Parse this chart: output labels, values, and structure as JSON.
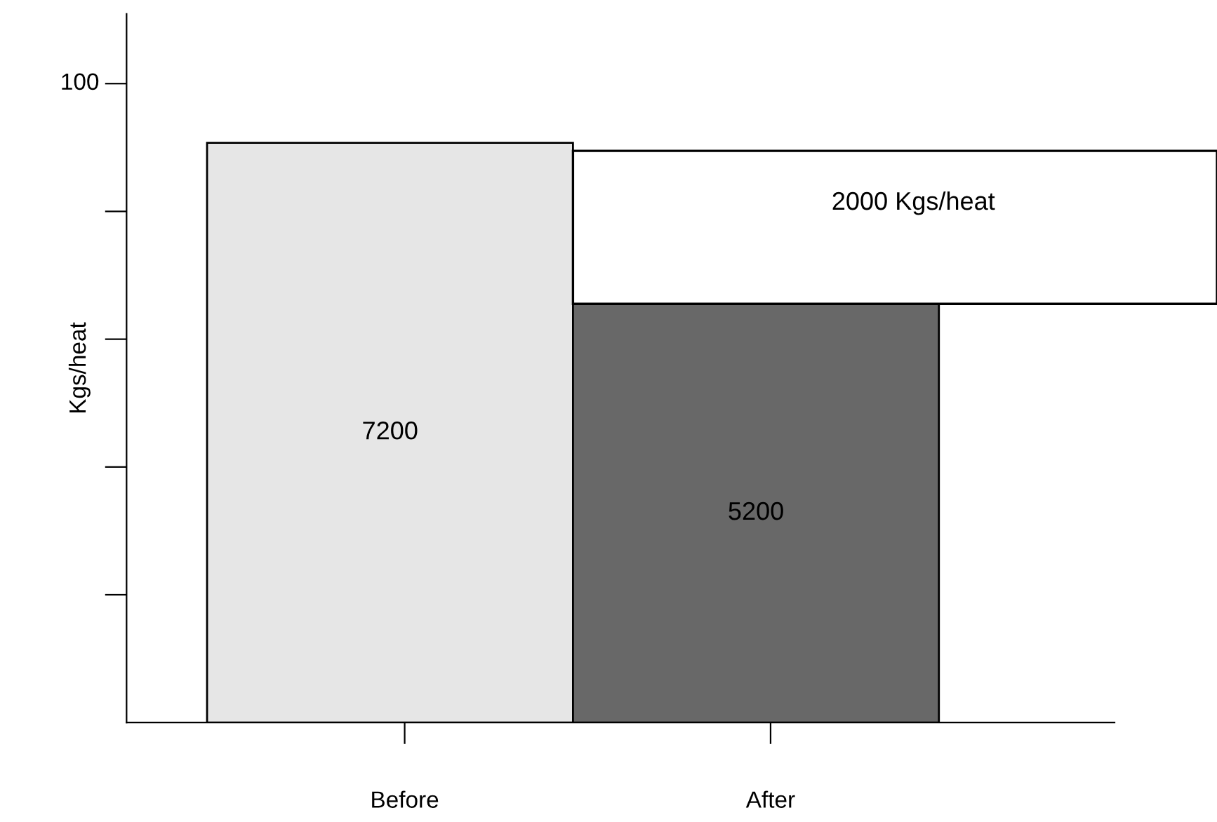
{
  "chart_data": {
    "type": "bar",
    "ylabel": "Kgs/heat",
    "categories": [
      "Before",
      "After"
    ],
    "values": [
      7200,
      5200
    ],
    "colors": [
      "#e6e6e6",
      "#686868"
    ],
    "data_labels": true,
    "ylim": [
      0,
      8800
    ],
    "yticks": [
      {
        "value": 1587,
        "label": null
      },
      {
        "value": 3174,
        "label": null
      },
      {
        "value": 4761,
        "label": null
      },
      {
        "value": 6348,
        "label": null
      },
      {
        "value": 7935,
        "label": null
      }
    ],
    "annotations": [
      "100"
    ],
    "bands": [
      {
        "axis": "y",
        "from": 5200,
        "to": 7100,
        "label": "2000 Kgs/heat"
      }
    ],
    "grid": false,
    "legend": false
  }
}
